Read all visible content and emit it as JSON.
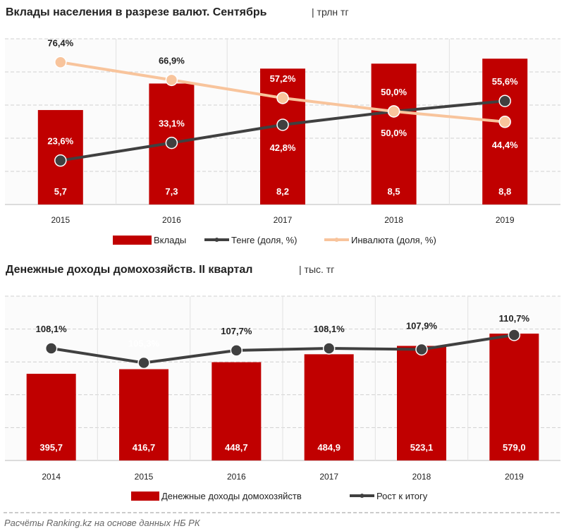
{
  "colors": {
    "bar": "#c00000",
    "tenge": "#404040",
    "foreign": "#f8c49c",
    "grid": "#d0d0d0"
  },
  "chart_data": [
    {
      "type": "bar",
      "title": "Вклады населения в разрезе валют. Сентябрь",
      "unit": "| трлн тг",
      "categories": [
        "2015",
        "2016",
        "2017",
        "2018",
        "2019"
      ],
      "ylim": [
        0,
        10
      ],
      "y2lim": [
        0,
        89
      ],
      "series": [
        {
          "name": "Вклады",
          "kind": "bar",
          "values": [
            5.7,
            7.3,
            8.2,
            8.5,
            8.8
          ],
          "labels": [
            "5,7",
            "7,3",
            "8,2",
            "8,5",
            "8,8"
          ]
        },
        {
          "name": "Тенге (доля, %)",
          "kind": "line",
          "values": [
            23.6,
            33.1,
            42.8,
            50.0,
            55.6
          ],
          "labels": [
            "23,6%",
            "33,1%",
            "42,8%",
            "50,0%",
            "55,6%"
          ]
        },
        {
          "name": "Инвалюта (доля, %)",
          "kind": "line",
          "values": [
            76.4,
            66.9,
            57.2,
            50.0,
            44.4
          ],
          "labels": [
            "76,4%",
            "66,9%",
            "57,2%",
            "50,0%",
            "44,4%"
          ]
        }
      ]
    },
    {
      "type": "bar",
      "title": "Денежные доходы домохозяйств. II квартал",
      "unit": "| тыс. тг",
      "categories": [
        "2014",
        "2015",
        "2016",
        "2017",
        "2018",
        "2019"
      ],
      "ylim": [
        0,
        750
      ],
      "y2lim": [
        86.4,
        118.2
      ],
      "series": [
        {
          "name": "Денежные доходы домохозяйств",
          "kind": "bar",
          "values": [
            395.7,
            416.7,
            448.7,
            484.9,
            523.1,
            579.0
          ],
          "labels": [
            "395,7",
            "416,7",
            "448,7",
            "484,9",
            "523,1",
            "579,0"
          ]
        },
        {
          "name": "Рост к итогу",
          "kind": "line",
          "values": [
            108.1,
            105.3,
            107.7,
            108.1,
            107.9,
            110.7
          ],
          "labels": [
            "108,1%",
            "105,3%",
            "107,7%",
            "108,1%",
            "107,9%",
            "110,7%"
          ]
        }
      ]
    }
  ],
  "footer": "Расчёты Ranking.kz на основе данных  НБ РК"
}
